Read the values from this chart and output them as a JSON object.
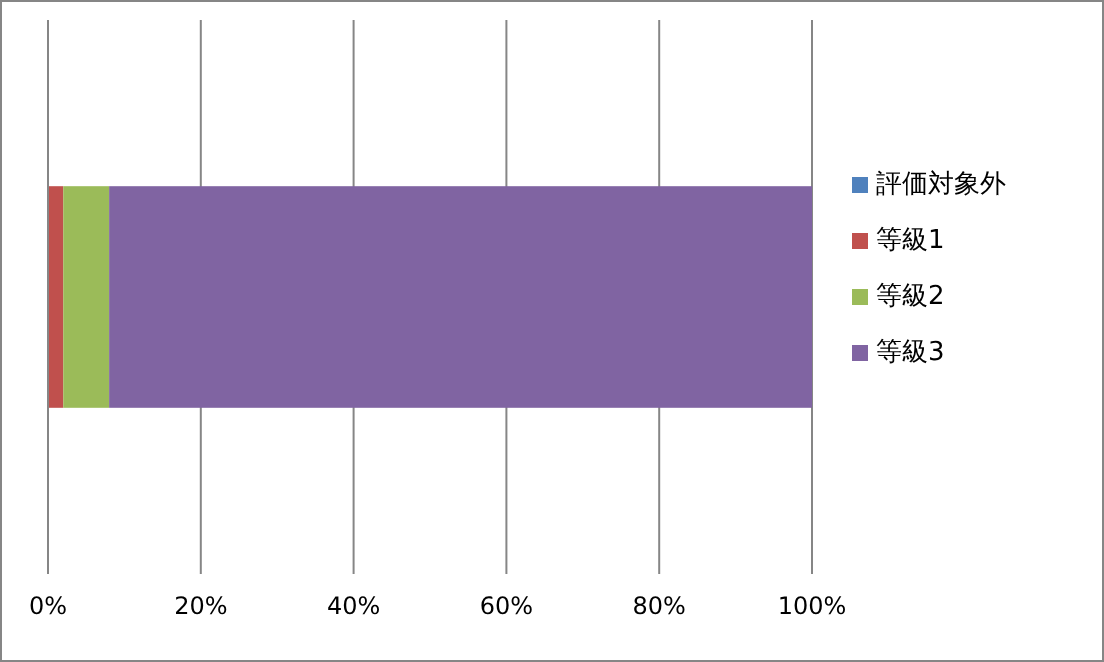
{
  "chart_data": {
    "type": "bar",
    "orientation": "horizontal",
    "stacked": true,
    "categories": [
      null
    ],
    "series": [
      {
        "name": "評価対象外",
        "color": "#4f81bd",
        "values": [
          0
        ]
      },
      {
        "name": "等級1",
        "color": "#c0504d",
        "values": [
          2
        ]
      },
      {
        "name": "等級2",
        "color": "#9bbb59",
        "values": [
          6
        ]
      },
      {
        "name": "等級3",
        "color": "#8064a2",
        "values": [
          92
        ]
      }
    ],
    "xlim": [
      0,
      100
    ],
    "xticks": [
      {
        "value": 0,
        "label": "0%"
      },
      {
        "value": 20,
        "label": "20%"
      },
      {
        "value": 40,
        "label": "40%"
      },
      {
        "value": 60,
        "label": "60%"
      },
      {
        "value": 80,
        "label": "80%"
      },
      {
        "value": 100,
        "label": "100%"
      }
    ],
    "grid": "x",
    "legend": "right",
    "tick_labels": "x"
  }
}
